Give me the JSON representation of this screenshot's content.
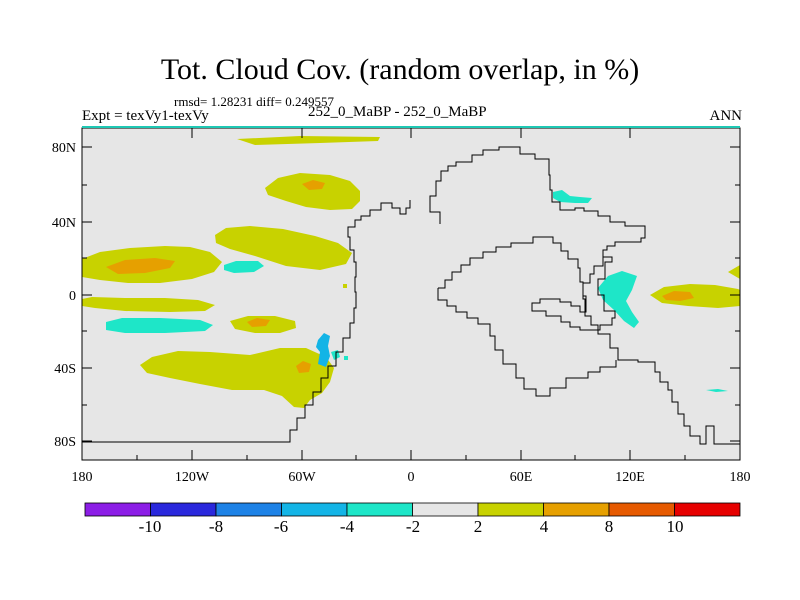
{
  "title": "Tot. Cloud Cov. (random overlap, in %)",
  "stats": "rmsd= 1.28231 diff= 0.249557",
  "experiment": "Expt = texVy1-texVy",
  "runs": "252_0_MaBP - 252_0_MaBP",
  "season": "ANN",
  "lon_ticks": [
    "180",
    "120W",
    "60W",
    "0",
    "60E",
    "120E",
    "180"
  ],
  "lat_ticks": [
    "80N",
    "40N",
    "0",
    "40S",
    "80S"
  ],
  "colorbar": {
    "labels": [
      "-10",
      "-8",
      "-6",
      "-4",
      "-2",
      "2",
      "4",
      "8",
      "10"
    ],
    "colors": [
      "#8c1ee6",
      "#2a28dc",
      "#1e82e6",
      "#13b4e6",
      "#1ee6c8",
      "#e6e6e6",
      "#c8d200",
      "#e6a000",
      "#e65a00",
      "#e60000"
    ]
  },
  "palette": {
    "land_bg": "#e6e6e6",
    "pos_2_4": "#c8d200",
    "pos_4_8": "#e6a000",
    "neg_2_4": "#1ee6c8",
    "neg_4_6": "#13b4e6"
  }
}
